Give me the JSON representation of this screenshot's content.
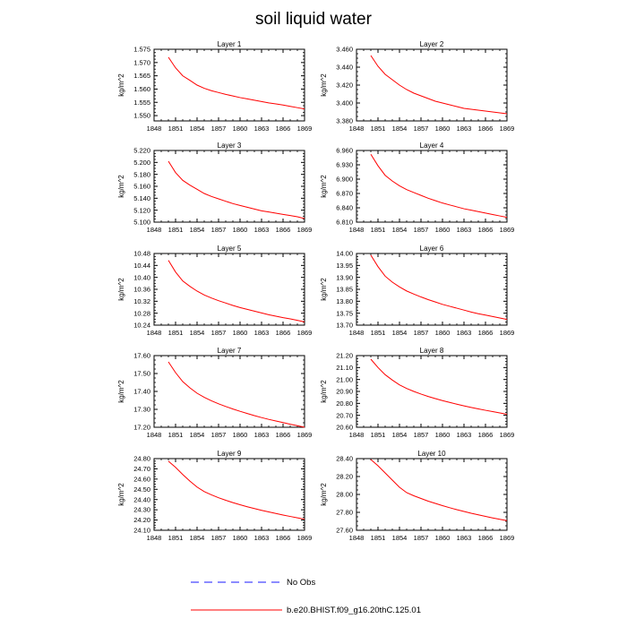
{
  "figure": {
    "title": "soil liquid water"
  },
  "legend": [
    {
      "label": "No Obs",
      "color": "#1a1aff",
      "style": "dashed"
    },
    {
      "label": "b.e20.BHIST.f09_g16.20thC.125.01",
      "color": "#ff0000",
      "style": "solid"
    }
  ],
  "chart_data": [
    {
      "type": "line",
      "title": "Layer 1",
      "ylabel": "kg/m^2",
      "xlim": [
        1848,
        1869
      ],
      "ylim": [
        1.548,
        1.575
      ],
      "xticks": [
        "1848",
        "1851",
        "1854",
        "1857",
        "1860",
        "1863",
        "1866",
        "1869"
      ],
      "yticks": [
        "1.550",
        "1.555",
        "1.560",
        "1.565",
        "1.570",
        "1.575"
      ],
      "series": [
        {
          "color": "#ff0000",
          "x": [
            1850,
            1851,
            1852,
            1853,
            1854,
            1855,
            1856,
            1857,
            1858,
            1859,
            1860,
            1861,
            1862,
            1863,
            1864,
            1865,
            1866,
            1867,
            1868,
            1869
          ],
          "y": [
            1.572,
            1.568,
            1.565,
            1.5633,
            1.5615,
            1.5603,
            1.5594,
            1.5587,
            1.558,
            1.5574,
            1.5568,
            1.5563,
            1.5558,
            1.5553,
            1.5548,
            1.5544,
            1.554,
            1.5535,
            1.553,
            1.5525
          ]
        }
      ]
    },
    {
      "type": "line",
      "title": "Layer 2",
      "ylabel": "kg/m^2",
      "xlim": [
        1848,
        1869
      ],
      "ylim": [
        3.38,
        3.46
      ],
      "xticks": [
        "1848",
        "1851",
        "1854",
        "1857",
        "1860",
        "1863",
        "1866",
        "1869"
      ],
      "yticks": [
        "3.380",
        "3.400",
        "3.420",
        "3.440",
        "3.460"
      ],
      "series": [
        {
          "color": "#ff0000",
          "x": [
            1850,
            1851,
            1852,
            1853,
            1854,
            1855,
            1856,
            1857,
            1858,
            1859,
            1860,
            1861,
            1862,
            1863,
            1864,
            1865,
            1866,
            1867,
            1868,
            1869
          ],
          "y": [
            3.453,
            3.441,
            3.432,
            3.426,
            3.42,
            3.415,
            3.411,
            3.408,
            3.405,
            3.402,
            3.4,
            3.398,
            3.396,
            3.394,
            3.393,
            3.392,
            3.391,
            3.39,
            3.389,
            3.388
          ]
        }
      ]
    },
    {
      "type": "line",
      "title": "Layer 3",
      "ylabel": "kg/m^2",
      "xlim": [
        1848,
        1869
      ],
      "ylim": [
        5.1,
        5.22
      ],
      "xticks": [
        "1848",
        "1851",
        "1854",
        "1857",
        "1860",
        "1863",
        "1866",
        "1869"
      ],
      "yticks": [
        "5.100",
        "5.120",
        "5.140",
        "5.160",
        "5.180",
        "5.200",
        "5.220"
      ],
      "series": [
        {
          "color": "#ff0000",
          "x": [
            1850,
            1851,
            1852,
            1853,
            1854,
            1855,
            1856,
            1857,
            1858,
            1859,
            1860,
            1861,
            1862,
            1863,
            1864,
            1865,
            1866,
            1867,
            1868,
            1869
          ],
          "y": [
            5.202,
            5.183,
            5.17,
            5.162,
            5.155,
            5.148,
            5.143,
            5.139,
            5.135,
            5.131,
            5.128,
            5.125,
            5.122,
            5.119,
            5.117,
            5.115,
            5.113,
            5.111,
            5.109,
            5.106
          ]
        }
      ]
    },
    {
      "type": "line",
      "title": "Layer 4",
      "ylabel": "kg/m^2",
      "xlim": [
        1848,
        1869
      ],
      "ylim": [
        6.81,
        6.96
      ],
      "xticks": [
        "1848",
        "1851",
        "1854",
        "1857",
        "1860",
        "1863",
        "1866",
        "1869"
      ],
      "yticks": [
        "6.810",
        "6.840",
        "6.870",
        "6.900",
        "6.930",
        "6.960"
      ],
      "series": [
        {
          "color": "#ff0000",
          "x": [
            1850,
            1851,
            1852,
            1853,
            1854,
            1855,
            1856,
            1857,
            1858,
            1859,
            1860,
            1861,
            1862,
            1863,
            1864,
            1865,
            1866,
            1867,
            1868,
            1869
          ],
          "y": [
            6.952,
            6.928,
            6.908,
            6.896,
            6.886,
            6.878,
            6.872,
            6.866,
            6.86,
            6.855,
            6.85,
            6.846,
            6.842,
            6.838,
            6.835,
            6.832,
            6.829,
            6.826,
            6.823,
            6.82
          ]
        }
      ]
    },
    {
      "type": "line",
      "title": "Layer 5",
      "ylabel": "kg/m^2",
      "xlim": [
        1848,
        1869
      ],
      "ylim": [
        10.24,
        10.48
      ],
      "xticks": [
        "1848",
        "1851",
        "1854",
        "1857",
        "1860",
        "1863",
        "1866",
        "1869"
      ],
      "yticks": [
        "10.24",
        "10.28",
        "10.32",
        "10.36",
        "10.40",
        "10.44",
        "10.48"
      ],
      "series": [
        {
          "color": "#ff0000",
          "x": [
            1850,
            1851,
            1852,
            1853,
            1854,
            1855,
            1856,
            1857,
            1858,
            1859,
            1860,
            1861,
            1862,
            1863,
            1864,
            1865,
            1866,
            1867,
            1868,
            1869
          ],
          "y": [
            10.457,
            10.418,
            10.388,
            10.37,
            10.354,
            10.341,
            10.331,
            10.322,
            10.314,
            10.306,
            10.299,
            10.293,
            10.287,
            10.281,
            10.275,
            10.27,
            10.265,
            10.261,
            10.256,
            10.251
          ]
        }
      ]
    },
    {
      "type": "line",
      "title": "Layer 6",
      "ylabel": "kg/m^2",
      "xlim": [
        1848,
        1869
      ],
      "ylim": [
        13.7,
        14.0
      ],
      "xticks": [
        "1848",
        "1851",
        "1854",
        "1857",
        "1860",
        "1863",
        "1866",
        "1869"
      ],
      "yticks": [
        "13.70",
        "13.75",
        "13.80",
        "13.85",
        "13.90",
        "13.95",
        "14.00"
      ],
      "series": [
        {
          "color": "#ff0000",
          "x": [
            1850,
            1851,
            1852,
            1853,
            1854,
            1855,
            1856,
            1857,
            1858,
            1859,
            1860,
            1861,
            1862,
            1863,
            1864,
            1865,
            1866,
            1867,
            1868,
            1869
          ],
          "y": [
            13.993,
            13.945,
            13.905,
            13.88,
            13.86,
            13.843,
            13.83,
            13.818,
            13.807,
            13.797,
            13.787,
            13.779,
            13.771,
            13.763,
            13.755,
            13.748,
            13.742,
            13.736,
            13.73,
            13.724
          ]
        }
      ]
    },
    {
      "type": "line",
      "title": "Layer 7",
      "ylabel": "kg/m^2",
      "xlim": [
        1848,
        1869
      ],
      "ylim": [
        17.2,
        17.6
      ],
      "xticks": [
        "1848",
        "1851",
        "1854",
        "1857",
        "1860",
        "1863",
        "1866",
        "1869"
      ],
      "yticks": [
        "17.20",
        "17.30",
        "17.40",
        "17.50",
        "17.60"
      ],
      "series": [
        {
          "color": "#ff0000",
          "x": [
            1850,
            1851,
            1852,
            1853,
            1854,
            1855,
            1856,
            1857,
            1858,
            1859,
            1860,
            1861,
            1862,
            1863,
            1864,
            1865,
            1866,
            1867,
            1868,
            1869
          ],
          "y": [
            17.565,
            17.505,
            17.455,
            17.42,
            17.39,
            17.367,
            17.348,
            17.331,
            17.316,
            17.302,
            17.289,
            17.277,
            17.265,
            17.254,
            17.244,
            17.235,
            17.226,
            17.217,
            17.209,
            17.2
          ]
        }
      ]
    },
    {
      "type": "line",
      "title": "Layer 8",
      "ylabel": "kg/m^2",
      "xlim": [
        1848,
        1869
      ],
      "ylim": [
        20.6,
        21.2
      ],
      "xticks": [
        "1848",
        "1851",
        "1854",
        "1857",
        "1860",
        "1863",
        "1866",
        "1869"
      ],
      "yticks": [
        "20.60",
        "20.70",
        "20.80",
        "20.90",
        "21.00",
        "21.10",
        "21.20"
      ],
      "series": [
        {
          "color": "#ff0000",
          "x": [
            1850,
            1851,
            1852,
            1853,
            1854,
            1855,
            1856,
            1857,
            1858,
            1859,
            1860,
            1861,
            1862,
            1863,
            1864,
            1865,
            1866,
            1867,
            1868,
            1869
          ],
          "y": [
            21.17,
            21.1,
            21.04,
            20.995,
            20.955,
            20.925,
            20.9,
            20.878,
            20.858,
            20.84,
            20.823,
            20.808,
            20.793,
            20.779,
            20.766,
            20.754,
            20.742,
            20.731,
            20.72,
            20.709
          ]
        }
      ]
    },
    {
      "type": "line",
      "title": "Layer 9",
      "ylabel": "kg/m^2",
      "xlim": [
        1848,
        1869
      ],
      "ylim": [
        24.1,
        24.8
      ],
      "xticks": [
        "1848",
        "1851",
        "1854",
        "1857",
        "1860",
        "1863",
        "1866",
        "1869"
      ],
      "yticks": [
        "24.10",
        "24.20",
        "24.30",
        "24.40",
        "24.50",
        "24.60",
        "24.70",
        "24.80"
      ],
      "series": [
        {
          "color": "#ff0000",
          "x": [
            1850,
            1851,
            1852,
            1853,
            1854,
            1855,
            1856,
            1857,
            1858,
            1859,
            1860,
            1861,
            1862,
            1863,
            1864,
            1865,
            1866,
            1867,
            1868,
            1869
          ],
          "y": [
            24.775,
            24.715,
            24.645,
            24.58,
            24.522,
            24.478,
            24.446,
            24.418,
            24.393,
            24.37,
            24.349,
            24.33,
            24.312,
            24.295,
            24.279,
            24.264,
            24.249,
            24.235,
            24.221,
            24.208
          ]
        }
      ]
    },
    {
      "type": "line",
      "title": "Layer 10",
      "ylabel": "kg/m^2",
      "xlim": [
        1848,
        1869
      ],
      "ylim": [
        27.6,
        28.4
      ],
      "xticks": [
        "1848",
        "1851",
        "1854",
        "1857",
        "1860",
        "1863",
        "1866",
        "1869"
      ],
      "yticks": [
        "27.60",
        "27.80",
        "28.00",
        "28.20",
        "28.40"
      ],
      "series": [
        {
          "color": "#ff0000",
          "x": [
            1850,
            1851,
            1852,
            1853,
            1854,
            1855,
            1856,
            1857,
            1858,
            1859,
            1860,
            1861,
            1862,
            1863,
            1864,
            1865,
            1866,
            1867,
            1868,
            1869
          ],
          "y": [
            28.39,
            28.32,
            28.24,
            28.16,
            28.08,
            28.02,
            27.985,
            27.955,
            27.925,
            27.9,
            27.875,
            27.852,
            27.83,
            27.81,
            27.79,
            27.772,
            27.755,
            27.738,
            27.722,
            27.708
          ]
        }
      ]
    }
  ]
}
